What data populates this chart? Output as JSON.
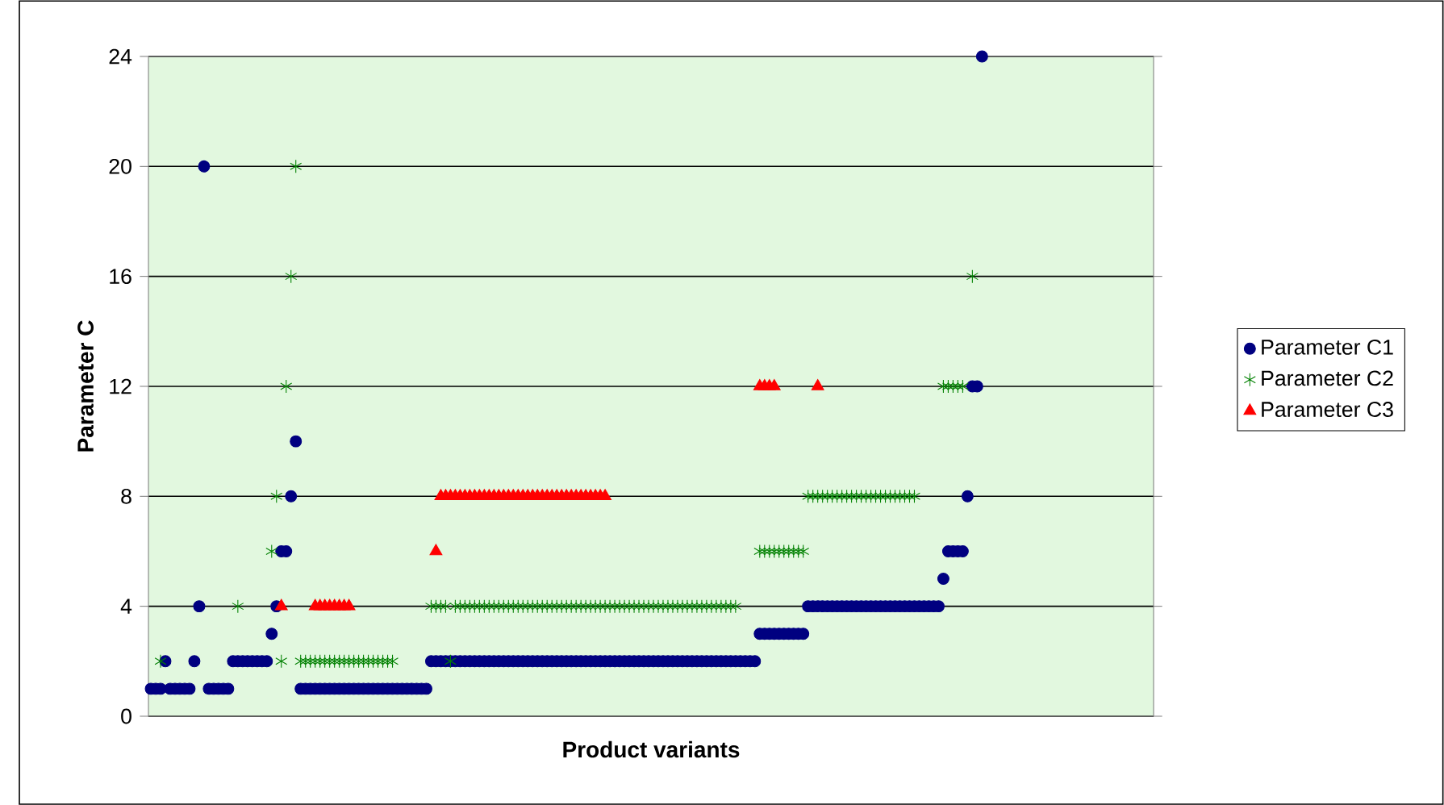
{
  "chart_data": {
    "type": "scatter",
    "xlabel": "Product variants",
    "ylabel": "Parameter C",
    "categories": [
      null,
      null,
      null,
      null,
      null,
      null,
      null,
      null,
      null,
      null,
      null,
      null,
      null,
      null,
      null,
      null,
      null,
      null,
      null,
      null,
      null,
      null,
      null,
      null,
      null,
      null,
      null,
      null,
      null,
      null,
      null,
      null,
      null,
      null,
      null,
      null,
      null,
      null,
      null,
      null,
      null,
      null,
      null,
      null,
      null,
      null,
      null,
      null,
      null,
      null,
      null,
      null,
      null,
      null,
      null,
      null,
      null,
      null,
      null,
      null,
      null,
      null,
      null,
      null,
      null,
      null,
      null,
      null,
      null,
      null,
      null,
      null,
      null,
      null,
      null,
      null,
      null,
      null,
      null,
      null,
      null,
      null,
      null,
      null,
      null,
      null,
      null,
      null,
      null,
      null,
      null,
      null,
      null,
      null,
      null,
      null,
      null,
      null,
      null,
      null,
      null,
      null,
      null,
      null,
      null,
      null,
      null,
      null,
      null,
      null,
      null,
      null,
      null,
      null,
      null,
      null,
      null,
      null,
      null,
      null,
      null,
      null,
      null,
      null,
      null,
      null,
      null,
      null,
      null,
      null,
      null,
      null,
      null,
      null,
      null,
      null,
      null,
      null,
      null,
      null,
      null,
      null,
      null,
      null,
      null,
      null,
      null,
      null,
      null,
      null,
      null,
      null,
      null,
      null,
      null,
      null,
      null,
      null,
      null,
      null,
      null,
      null,
      null,
      null,
      null,
      null,
      null,
      null,
      null,
      null,
      null,
      null,
      null,
      null,
      null,
      null,
      null,
      null,
      null,
      null,
      null,
      null,
      null,
      null,
      null,
      null,
      null,
      null,
      null,
      null,
      null,
      null,
      null,
      null,
      null,
      null,
      null,
      null,
      null,
      null,
      null,
      null,
      null,
      null,
      null,
      null,
      null,
      null
    ],
    "series": [
      {
        "name": "Parameter C1",
        "color": "#000080",
        "marker": "circle",
        "values": [
          1,
          1,
          1,
          2,
          1,
          1,
          1,
          1,
          1,
          2,
          4,
          20,
          1,
          1,
          1,
          1,
          1,
          2,
          2,
          2,
          2,
          2,
          2,
          2,
          2,
          3,
          4,
          6,
          6,
          8,
          10,
          1,
          1,
          1,
          1,
          1,
          1,
          1,
          1,
          1,
          1,
          1,
          1,
          1,
          1,
          1,
          1,
          1,
          1,
          1,
          1,
          1,
          1,
          1,
          1,
          1,
          1,
          1,
          2,
          2,
          2,
          2,
          2,
          2,
          2,
          2,
          2,
          2,
          2,
          2,
          2,
          2,
          2,
          2,
          2,
          2,
          2,
          2,
          2,
          2,
          2,
          2,
          2,
          2,
          2,
          2,
          2,
          2,
          2,
          2,
          2,
          2,
          2,
          2,
          2,
          2,
          2,
          2,
          2,
          2,
          2,
          2,
          2,
          2,
          2,
          2,
          2,
          2,
          2,
          2,
          2,
          2,
          2,
          2,
          2,
          2,
          2,
          2,
          2,
          2,
          2,
          2,
          2,
          2,
          2,
          2,
          3,
          3,
          3,
          3,
          3,
          3,
          3,
          3,
          3,
          3,
          4,
          4,
          4,
          4,
          4,
          4,
          4,
          4,
          4,
          4,
          4,
          4,
          4,
          4,
          4,
          4,
          4,
          4,
          4,
          4,
          4,
          4,
          4,
          4,
          4,
          4,
          4,
          4,
          5,
          6,
          6,
          6,
          6,
          8,
          12,
          12,
          24,
          null,
          null,
          null,
          null,
          null,
          null,
          null,
          null,
          null,
          null,
          null,
          null,
          null,
          null,
          null,
          null,
          null,
          null,
          null,
          null,
          null,
          null,
          null,
          null,
          null,
          null,
          null,
          null,
          null,
          null,
          null,
          null,
          null,
          null,
          null
        ]
      },
      {
        "name": "Parameter C2",
        "color": "#008000",
        "marker": "cross",
        "values": [
          null,
          null,
          2,
          null,
          null,
          null,
          null,
          null,
          null,
          null,
          null,
          null,
          null,
          null,
          null,
          null,
          null,
          null,
          4,
          null,
          null,
          null,
          null,
          null,
          null,
          6,
          8,
          2,
          12,
          16,
          20,
          2,
          2,
          2,
          2,
          2,
          2,
          2,
          2,
          2,
          2,
          2,
          2,
          2,
          2,
          2,
          2,
          2,
          2,
          2,
          2,
          null,
          null,
          null,
          null,
          null,
          null,
          null,
          4,
          4,
          4,
          4,
          2,
          4,
          4,
          4,
          4,
          4,
          4,
          4,
          4,
          4,
          4,
          4,
          4,
          4,
          4,
          4,
          4,
          4,
          4,
          4,
          4,
          4,
          4,
          4,
          4,
          4,
          4,
          4,
          4,
          4,
          4,
          4,
          4,
          4,
          4,
          4,
          4,
          4,
          4,
          4,
          4,
          4,
          4,
          4,
          4,
          4,
          4,
          4,
          4,
          4,
          4,
          4,
          4,
          4,
          4,
          4,
          4,
          4,
          4,
          4,
          null,
          null,
          null,
          null,
          6,
          6,
          6,
          6,
          6,
          6,
          6,
          6,
          6,
          6,
          8,
          8,
          8,
          8,
          8,
          8,
          8,
          8,
          8,
          8,
          8,
          8,
          8,
          8,
          8,
          8,
          8,
          8,
          8,
          8,
          8,
          8,
          8,
          null,
          null,
          null,
          null,
          null,
          12,
          12,
          12,
          12,
          12,
          null,
          16,
          null,
          null,
          null,
          null,
          null,
          null,
          null,
          null,
          null,
          null,
          null,
          null,
          null,
          null,
          null,
          null,
          null,
          null,
          null,
          null,
          null,
          null,
          null,
          null,
          null,
          null,
          null,
          null,
          null,
          null,
          null,
          null,
          null,
          null,
          null,
          null,
          null
        ]
      },
      {
        "name": "Parameter C3",
        "color": "#ff0000",
        "marker": "triangle",
        "values": [
          null,
          null,
          null,
          null,
          null,
          null,
          null,
          null,
          null,
          null,
          null,
          null,
          null,
          null,
          null,
          null,
          null,
          null,
          null,
          null,
          null,
          null,
          null,
          null,
          null,
          null,
          null,
          4,
          null,
          null,
          null,
          null,
          null,
          null,
          4,
          4,
          4,
          4,
          4,
          4,
          4,
          4,
          null,
          null,
          null,
          null,
          null,
          null,
          null,
          null,
          null,
          null,
          null,
          null,
          null,
          null,
          null,
          null,
          null,
          6,
          8,
          8,
          8,
          8,
          8,
          8,
          8,
          8,
          8,
          8,
          8,
          8,
          8,
          8,
          8,
          8,
          8,
          8,
          8,
          8,
          8,
          8,
          8,
          8,
          8,
          8,
          8,
          8,
          8,
          8,
          8,
          8,
          8,
          8,
          8,
          null,
          null,
          null,
          null,
          null,
          null,
          null,
          null,
          null,
          null,
          null,
          null,
          null,
          null,
          null,
          null,
          null,
          null,
          null,
          null,
          null,
          null,
          null,
          null,
          null,
          null,
          null,
          null,
          null,
          null,
          null,
          12,
          12,
          12,
          12,
          null,
          null,
          null,
          null,
          null,
          null,
          null,
          null,
          12,
          null,
          null,
          null,
          null,
          null,
          null,
          null,
          null,
          null,
          null,
          null,
          null,
          null,
          null,
          null,
          null,
          null,
          null,
          null,
          null,
          null,
          null,
          null,
          null,
          null,
          null,
          null,
          null,
          null,
          null,
          null,
          null,
          null,
          null,
          null,
          null,
          null,
          null,
          null,
          null,
          null,
          null,
          null,
          null,
          null,
          null,
          null,
          null,
          null,
          null,
          null,
          null,
          null,
          null,
          null,
          null,
          null,
          null,
          null,
          null,
          null,
          null,
          null,
          null,
          null,
          null,
          null,
          null,
          null
        ]
      }
    ],
    "ylim": [
      0,
      24
    ],
    "yticks": [
      0,
      4,
      8,
      12,
      16,
      20,
      24
    ],
    "grid": "y",
    "legend": "right",
    "tick_labels": "y"
  }
}
